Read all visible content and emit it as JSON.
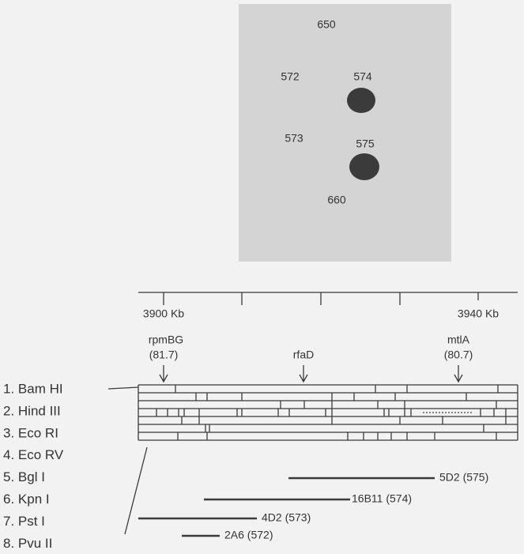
{
  "blot": {
    "labels": [
      "650",
      "572",
      "574",
      "573",
      "575",
      "660"
    ]
  },
  "scale": {
    "labels": [
      "3900 Kb",
      "3940 Kb"
    ]
  },
  "markers": [
    {
      "name": "rpmBG",
      "position": "(81.7)"
    },
    {
      "name": "rfaD"
    },
    {
      "name": "mtlA",
      "position": "(80.7)"
    }
  ],
  "enzymes": [
    "1. Bam HI",
    "2. Hind III",
    "3. Eco RI",
    "4. Eco RV",
    "5. Bgl I",
    "6. Kpn I",
    "7. Pst I",
    "8. Pvu II"
  ],
  "clones": [
    "5D2 (575)",
    "16B11 (574)",
    "4D2 (573)",
    "2A6 (572)"
  ]
}
